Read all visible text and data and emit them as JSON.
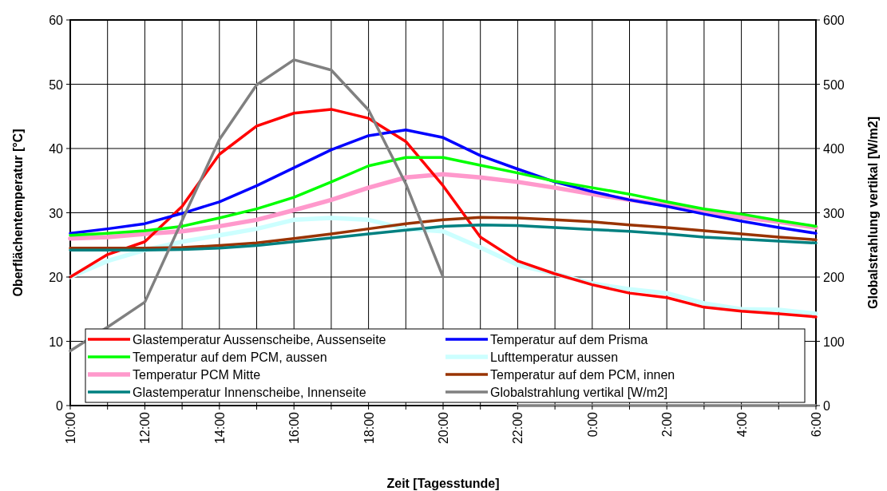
{
  "chart_data": {
    "type": "line",
    "xlabel": "Zeit [Tagesstunde]",
    "ylabel": "Oberflächentemperatur [°C]",
    "y2label": "Globalstrahlung vertikal [W/m2]",
    "x": [
      "2000-01-01T10:00",
      "2000-01-01T11:00",
      "2000-01-01T12:00",
      "2000-01-01T13:00",
      "2000-01-01T14:00",
      "2000-01-01T15:00",
      "2000-01-01T16:00",
      "2000-01-01T17:00",
      "2000-01-01T18:00",
      "2000-01-01T19:00",
      "2000-01-01T20:00",
      "2000-01-01T21:00",
      "2000-01-01T22:00",
      "2000-01-01T23:00",
      "2000-01-02T00:00",
      "2000-01-02T01:00",
      "2000-01-02T02:00",
      "2000-01-02T03:00",
      "2000-01-02T04:00",
      "2000-01-02T05:00",
      "2000-01-02T06:00"
    ],
    "xlim": [
      "2000-01-01T10:00",
      "2000-01-02T06:00"
    ],
    "xticks": [
      {
        "value": "2000-01-01T10:00",
        "label": "10:00"
      },
      {
        "value": "2000-01-01T11:00",
        "label": null
      },
      {
        "value": "2000-01-01T12:00",
        "label": "12:00"
      },
      {
        "value": "2000-01-01T13:00",
        "label": null
      },
      {
        "value": "2000-01-01T14:00",
        "label": "14:00"
      },
      {
        "value": "2000-01-01T15:00",
        "label": null
      },
      {
        "value": "2000-01-01T16:00",
        "label": "16:00"
      },
      {
        "value": "2000-01-01T17:00",
        "label": null
      },
      {
        "value": "2000-01-01T18:00",
        "label": "18:00"
      },
      {
        "value": "2000-01-01T19:00",
        "label": null
      },
      {
        "value": "2000-01-01T20:00",
        "label": "20:00"
      },
      {
        "value": "2000-01-01T21:00",
        "label": null
      },
      {
        "value": "2000-01-01T22:00",
        "label": "22:00"
      },
      {
        "value": "2000-01-01T23:00",
        "label": null
      },
      {
        "value": "2000-01-02T00:00",
        "label": "0:00"
      },
      {
        "value": "2000-01-02T01:00",
        "label": null
      },
      {
        "value": "2000-01-02T02:00",
        "label": "2:00"
      },
      {
        "value": "2000-01-02T03:00",
        "label": null
      },
      {
        "value": "2000-01-02T04:00",
        "label": "4:00"
      },
      {
        "value": "2000-01-02T05:00",
        "label": null
      },
      {
        "value": "2000-01-02T06:00",
        "label": "6:00"
      }
    ],
    "ylim": [
      0,
      60
    ],
    "yticks": [
      0,
      10,
      20,
      30,
      40,
      50,
      60
    ],
    "y2lim": [
      0,
      600
    ],
    "y2ticks": [
      0,
      100,
      200,
      300,
      400,
      500,
      600
    ],
    "grid": true,
    "legend": "bottom",
    "marker": "none",
    "line_style": "solid",
    "series": [
      {
        "name": "Glastemperatur Aussenscheibe, Aussenseite",
        "color": "#ff0000",
        "values": [
          20,
          23.5,
          25.5,
          31,
          39.1,
          43.5,
          45.5,
          46.1,
          44.7,
          41.1,
          34.2,
          26.2,
          22.5,
          20.5,
          18.8,
          17.5,
          16.8,
          15.3,
          14.7,
          14.3,
          13.8
        ]
      },
      {
        "name": "Temperatur auf dem Prisma",
        "color": "#0000ff",
        "values": [
          26.8,
          27.5,
          28.3,
          29.9,
          31.7,
          34.2,
          37,
          39.8,
          42,
          42.9,
          41.7,
          38.9,
          36.8,
          34.8,
          33.3,
          32,
          31,
          29.8,
          28.7,
          27.7,
          26.8
        ]
      },
      {
        "name": "Temperatur auf dem PCM, aussen",
        "color": "#00ff00",
        "values": [
          26.5,
          26.8,
          27.2,
          27.9,
          29.2,
          30.6,
          32.4,
          34.8,
          37.3,
          38.6,
          38.6,
          37.4,
          36.2,
          34.9,
          33.9,
          32.9,
          31.7,
          30.6,
          29.8,
          28.8,
          27.9
        ]
      },
      {
        "name": "Lufttemperatur aussen",
        "color": "#ccffff",
        "values": [
          20,
          22.5,
          24.2,
          25.5,
          26.5,
          27.5,
          28.9,
          29.2,
          28.9,
          27.5,
          27.1,
          24.6,
          21.9,
          20.5,
          19,
          18.1,
          17.5,
          15.9,
          15,
          14.9,
          14.3
        ]
      },
      {
        "name": "Temperatur PCM Mitte",
        "color": "#ff99cc",
        "values": [
          26,
          26.2,
          26.7,
          27.1,
          27.9,
          28.9,
          30.4,
          32,
          33.9,
          35.5,
          36,
          35.5,
          34.8,
          33.9,
          32.9,
          32,
          31.2,
          30.2,
          29.3,
          28.6,
          27.7
        ]
      },
      {
        "name": "Temperatur auf dem PCM, innen",
        "color": "#993300",
        "values": [
          24.5,
          24.5,
          24.5,
          24.6,
          24.9,
          25.3,
          26,
          26.7,
          27.5,
          28.3,
          28.9,
          29.3,
          29.2,
          28.9,
          28.6,
          28.1,
          27.7,
          27.2,
          26.7,
          26.2,
          25.8
        ]
      },
      {
        "name": "Glastemperatur Innenscheibe, Innenseite",
        "color": "#008080",
        "values": [
          24.2,
          24.2,
          24.2,
          24.3,
          24.5,
          24.9,
          25.5,
          26.1,
          26.7,
          27.3,
          27.9,
          28.1,
          28,
          27.7,
          27.4,
          27.1,
          26.7,
          26.2,
          25.9,
          25.6,
          25.3
        ]
      },
      {
        "name": "Globalstrahlung vertikal [W/m2]",
        "color": "#808080",
        "axis": "y2",
        "values": [
          85,
          122,
          161,
          288,
          414,
          499,
          538,
          522,
          460,
          345,
          200,
          null,
          0,
          0,
          0,
          0,
          0,
          0,
          0,
          0,
          0
        ]
      }
    ]
  }
}
